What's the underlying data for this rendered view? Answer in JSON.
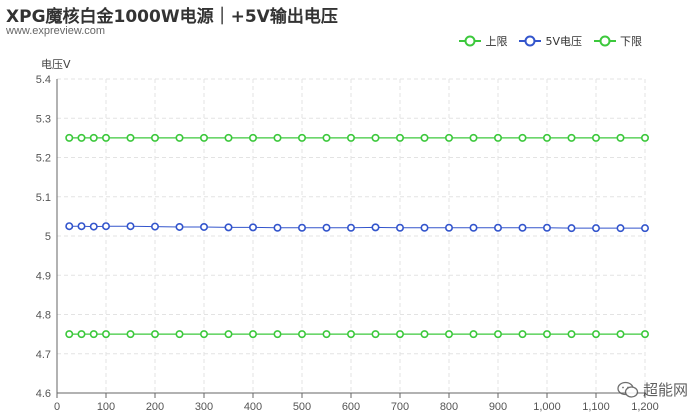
{
  "header": {
    "title": "XPG魔核白金1000W电源｜+5V输出电压",
    "subtitle": "www.expreview.com"
  },
  "watermark": {
    "text": "超能网"
  },
  "chart_data": {
    "type": "line",
    "ylabel": "电压V",
    "xlabel": "",
    "ylim": [
      4.6,
      5.4
    ],
    "yticks": [
      4.6,
      4.7,
      4.8,
      4.9,
      5,
      5.1,
      5.2,
      5.3,
      5.4
    ],
    "xlim": [
      0,
      1200
    ],
    "xticks": [
      0,
      100,
      200,
      300,
      400,
      500,
      600,
      700,
      800,
      900,
      1000,
      1100,
      1200
    ],
    "xtick_labels": [
      "0",
      "100",
      "200",
      "300",
      "400",
      "500",
      "600",
      "700",
      "800",
      "900",
      "1,000",
      "1,100",
      "1,200"
    ],
    "x": [
      25,
      50,
      75,
      100,
      150,
      200,
      250,
      300,
      350,
      400,
      450,
      500,
      550,
      600,
      650,
      700,
      750,
      800,
      850,
      900,
      950,
      1000,
      1050,
      1100,
      1150,
      1200
    ],
    "grid": true,
    "legend_position": "top-right",
    "series": [
      {
        "name": "上限",
        "color": "#3cc83c",
        "values": [
          5.25,
          5.25,
          5.25,
          5.25,
          5.25,
          5.25,
          5.25,
          5.25,
          5.25,
          5.25,
          5.25,
          5.25,
          5.25,
          5.25,
          5.25,
          5.25,
          5.25,
          5.25,
          5.25,
          5.25,
          5.25,
          5.25,
          5.25,
          5.25,
          5.25,
          5.25
        ]
      },
      {
        "name": "5V电压",
        "color": "#3355cc",
        "values": [
          5.025,
          5.025,
          5.024,
          5.025,
          5.025,
          5.024,
          5.023,
          5.023,
          5.022,
          5.022,
          5.021,
          5.021,
          5.021,
          5.021,
          5.022,
          5.021,
          5.021,
          5.021,
          5.021,
          5.021,
          5.021,
          5.021,
          5.02,
          5.02,
          5.02,
          5.02
        ]
      },
      {
        "name": "下限",
        "color": "#3cc83c",
        "values": [
          4.75,
          4.75,
          4.75,
          4.75,
          4.75,
          4.75,
          4.75,
          4.75,
          4.75,
          4.75,
          4.75,
          4.75,
          4.75,
          4.75,
          4.75,
          4.75,
          4.75,
          4.75,
          4.75,
          4.75,
          4.75,
          4.75,
          4.75,
          4.75,
          4.75,
          4.75
        ]
      }
    ]
  }
}
